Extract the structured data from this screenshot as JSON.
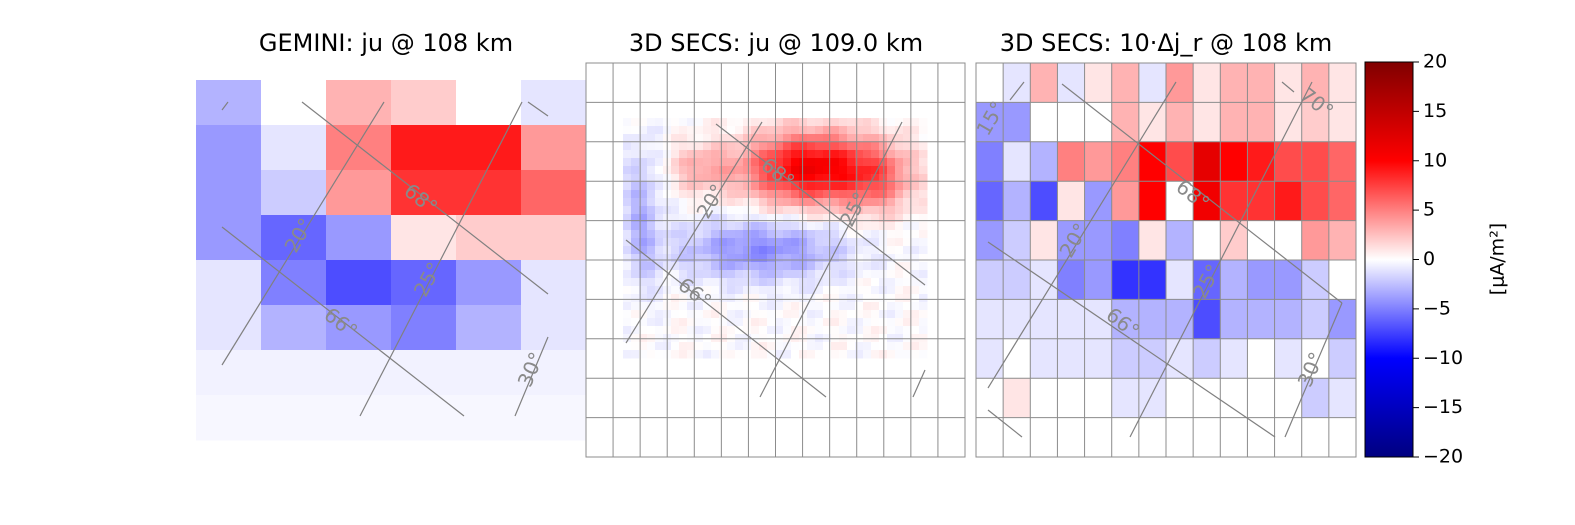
{
  "chart_data": {
    "type": "heatmap",
    "colormap": "seismic",
    "clim": [
      -20,
      20
    ],
    "colorbar": {
      "label": "[μA/m²]",
      "ticks": [
        20,
        15,
        10,
        5,
        0,
        -5,
        -10,
        -15,
        -20
      ],
      "tick_labels": [
        "20",
        "15",
        "10",
        "5",
        "0",
        "−5",
        "−10",
        "−15",
        "−20"
      ]
    },
    "panels": [
      {
        "title": "GEMINI: ju @ 108 km",
        "grid_lines": false,
        "values": [
          [
            -3,
            0,
            3,
            2,
            0,
            -1
          ],
          [
            -4,
            -1,
            5,
            9,
            9,
            4
          ],
          [
            -4,
            -2,
            4,
            8,
            8,
            6
          ],
          [
            -4,
            -6,
            -4,
            1,
            2,
            2
          ],
          [
            -1,
            -5,
            -7,
            -6,
            -4,
            -1
          ],
          [
            -1,
            -3,
            -4,
            -5,
            -3,
            -1
          ],
          [
            -0.5,
            -0.5,
            -0.5,
            -0.5,
            -0.5,
            -0.5
          ],
          [
            -0.3,
            -0.3,
            -0.3,
            -0.3,
            -0.3,
            -0.3
          ]
        ],
        "contour_labels": [
          {
            "text": "20°"
          },
          {
            "text": "25°"
          },
          {
            "text": "30°"
          },
          {
            "text": "66°"
          },
          {
            "text": "68°"
          }
        ]
      },
      {
        "title": "3D SECS: ju @ 109.0 km",
        "grid_lines": true,
        "contour_labels": [
          {
            "text": "20°"
          },
          {
            "text": "25°"
          },
          {
            "text": "66°"
          },
          {
            "text": "68°"
          }
        ]
      },
      {
        "title": "3D SECS: 10·Δj_r @ 108 km",
        "grid_lines": true,
        "values": [
          [
            0,
            -1,
            3,
            -1,
            1,
            3,
            -1,
            4,
            1,
            3,
            3,
            1,
            3,
            1
          ],
          [
            -4,
            -4,
            0,
            0,
            0,
            3,
            1,
            3,
            1,
            3,
            3,
            1,
            2,
            1
          ],
          [
            -5,
            -1,
            -3,
            5,
            4,
            5,
            10,
            7,
            12,
            10,
            9,
            7,
            7,
            6
          ],
          [
            -6,
            -3,
            -7,
            1,
            -4,
            4,
            10,
            0,
            11,
            8,
            8,
            9,
            7,
            6
          ],
          [
            -4,
            -2,
            1,
            -4,
            -4,
            -5,
            1,
            -3,
            0,
            2,
            0,
            0,
            4,
            3
          ],
          [
            -2,
            -2,
            -1,
            -5,
            -4,
            -8,
            -8,
            -1,
            -6,
            -3,
            -4,
            -4,
            -2,
            0
          ],
          [
            -1,
            -1,
            -1,
            -1,
            -1,
            -3,
            -3,
            -3,
            -7,
            -3,
            -3,
            -3,
            -2,
            -4
          ],
          [
            -1,
            0,
            -1,
            -1,
            -1,
            -2,
            -2,
            -1,
            -2,
            -1,
            0,
            -1,
            0,
            -2
          ],
          [
            0,
            1,
            0,
            0,
            0,
            -1,
            -1,
            0,
            0,
            0,
            0,
            0,
            -2,
            -1
          ],
          [
            0,
            0,
            0,
            0,
            0,
            0,
            0,
            0,
            0,
            0,
            0,
            0,
            0,
            0
          ]
        ],
        "contour_labels": [
          {
            "text": "15°"
          },
          {
            "text": "20°"
          },
          {
            "text": "25°"
          },
          {
            "text": "30°"
          },
          {
            "text": "66°"
          },
          {
            "text": "68°"
          },
          {
            "text": "70°"
          }
        ]
      }
    ]
  }
}
